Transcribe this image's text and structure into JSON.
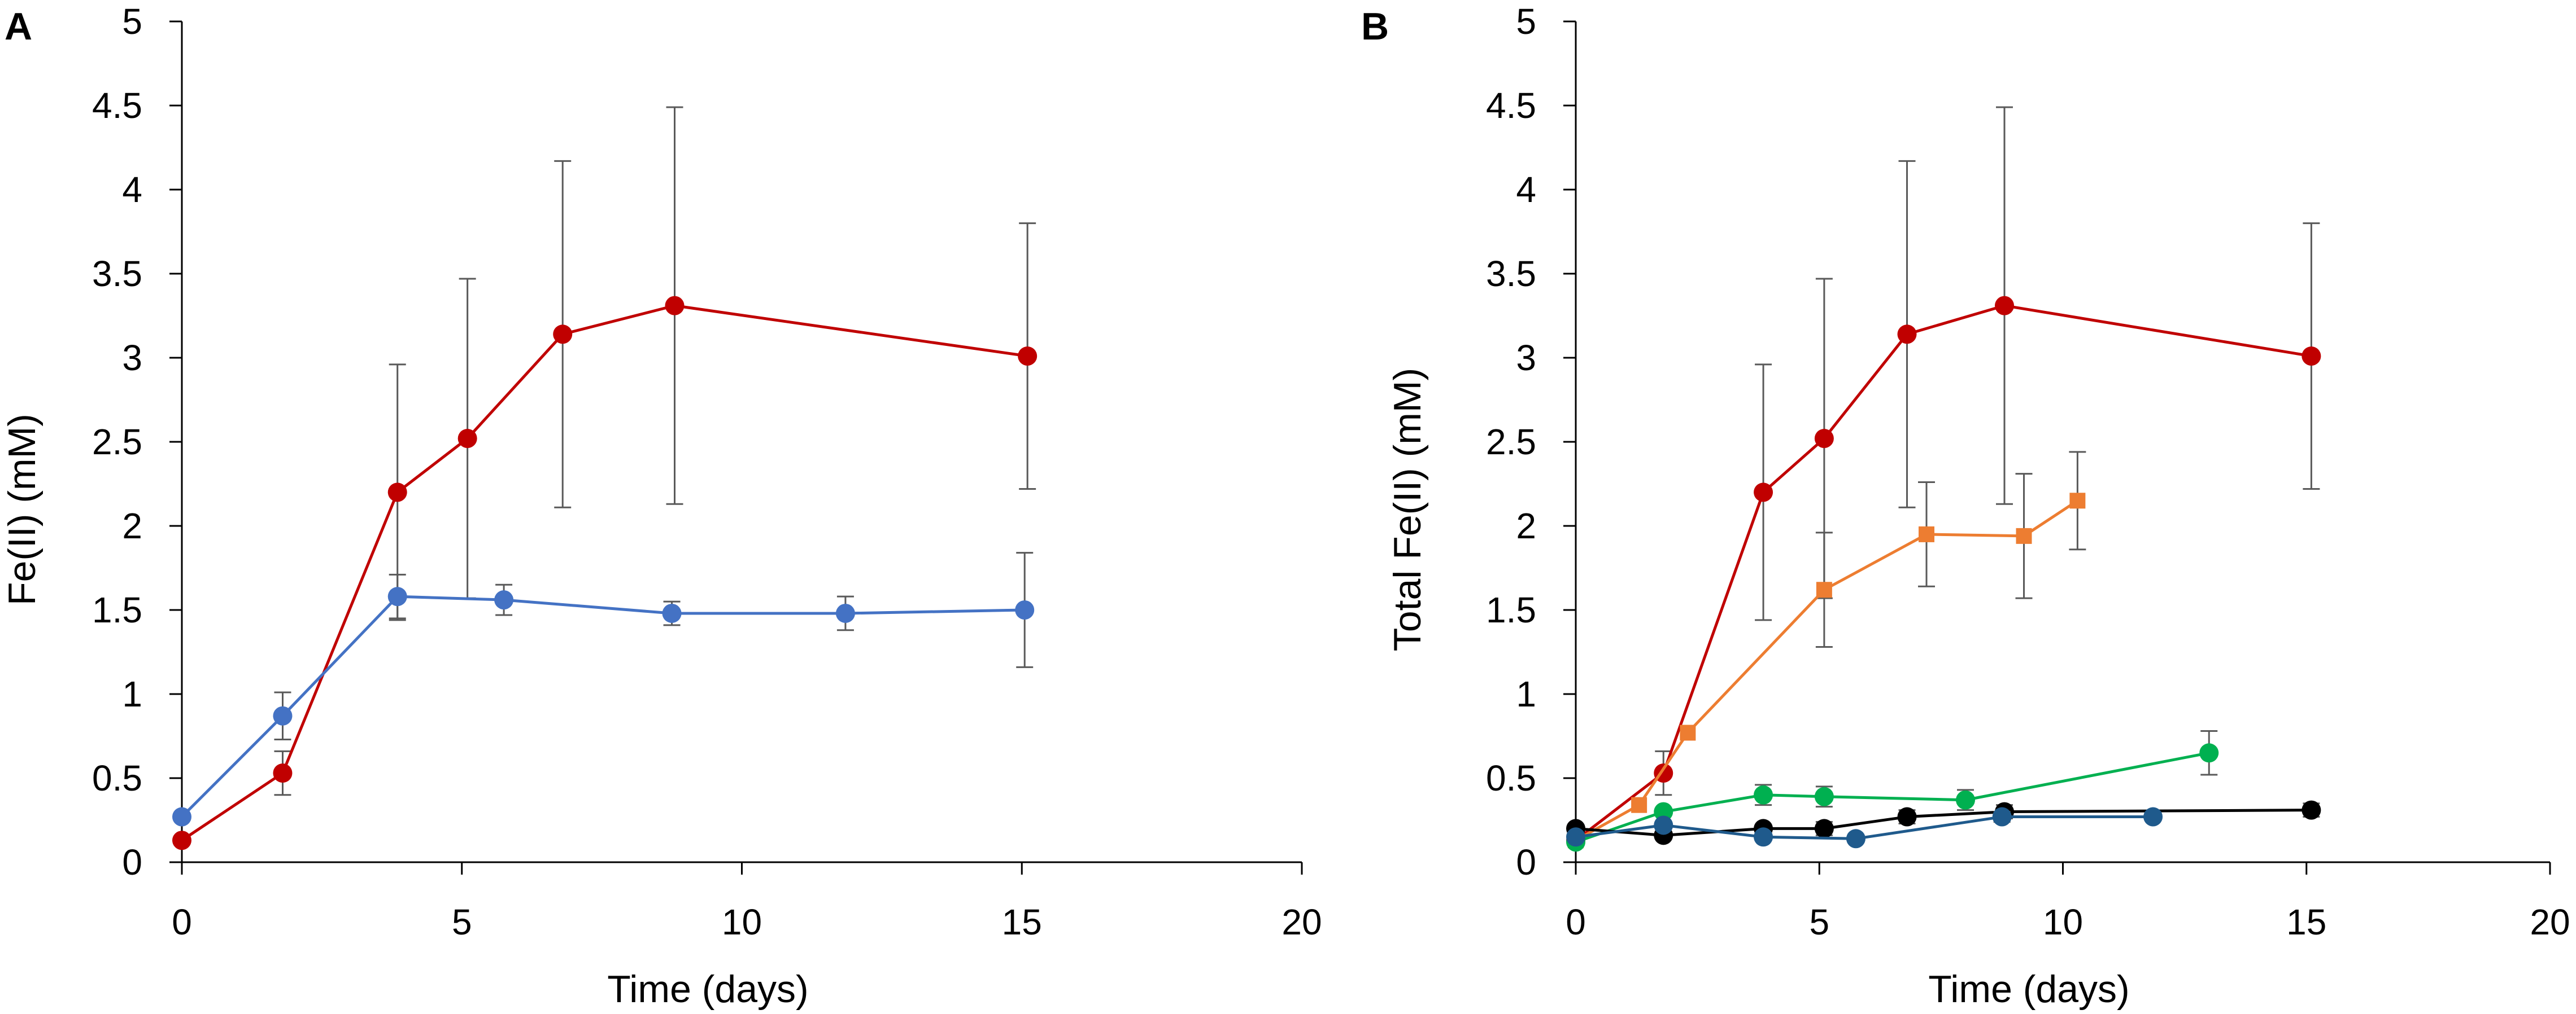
{
  "chart_data": [
    {
      "panel": "A",
      "type": "line",
      "title": "",
      "xlabel": "Time (days)",
      "ylabel": "Fe(II) (mM)",
      "xlim": [
        0,
        20
      ],
      "ylim": [
        0,
        5
      ],
      "xticks": [
        0,
        5,
        10,
        15,
        20
      ],
      "yticks": [
        "0",
        "0.5",
        "1",
        "1.5",
        "2",
        "2.5",
        "3",
        "3.5",
        "4",
        "4.5",
        "5"
      ],
      "series": [
        {
          "name": "red",
          "color": "#c00000",
          "marker": "circle",
          "x": [
            0,
            1.8,
            3.85,
            5.1,
            6.8,
            8.8,
            15.1
          ],
          "y": [
            0.13,
            0.53,
            2.2,
            2.52,
            3.14,
            3.31,
            3.01
          ],
          "err": [
            0,
            0.13,
            0.76,
            0.95,
            1.03,
            1.18,
            0.79
          ]
        },
        {
          "name": "blue",
          "color": "#4472c4",
          "marker": "circle",
          "x": [
            0,
            1.8,
            3.85,
            5.75,
            8.75,
            11.85,
            15.05
          ],
          "y": [
            0.27,
            0.87,
            1.58,
            1.56,
            1.48,
            1.48,
            1.5
          ],
          "err": [
            0,
            0.14,
            0.13,
            0.09,
            0.07,
            0.1,
            0.34
          ]
        }
      ]
    },
    {
      "panel": "B",
      "type": "line",
      "title": "",
      "xlabel": "Time (days)",
      "ylabel": "Total Fe(II) (mM)",
      "xlim": [
        0,
        20
      ],
      "ylim": [
        0,
        5
      ],
      "xticks": [
        0,
        5,
        10,
        15,
        20
      ],
      "yticks": [
        "0",
        "0.5",
        "1",
        "1.5",
        "2",
        "2.5",
        "3",
        "3.5",
        "4",
        "4.5",
        "5"
      ],
      "series": [
        {
          "name": "red",
          "color": "#c00000",
          "marker": "circle",
          "x": [
            0,
            1.8,
            3.85,
            5.1,
            6.8,
            8.8,
            15.1
          ],
          "y": [
            0.13,
            0.53,
            2.2,
            2.52,
            3.14,
            3.31,
            3.01
          ],
          "err": [
            0,
            0.13,
            0.76,
            0.95,
            1.03,
            1.18,
            0.79
          ]
        },
        {
          "name": "orange",
          "color": "#ed7d31",
          "marker": "square",
          "x": [
            0,
            1.3,
            2.3,
            5.1,
            7.2,
            9.2,
            10.3
          ],
          "y": [
            0.13,
            0.34,
            0.77,
            1.62,
            1.95,
            1.94,
            2.15
          ],
          "err": [
            0,
            0,
            0,
            0.34,
            0.31,
            0.37,
            0.29
          ]
        },
        {
          "name": "green",
          "color": "#00b050",
          "marker": "circle",
          "x": [
            0,
            1.8,
            3.85,
            5.1,
            8.0,
            13.0
          ],
          "y": [
            0.12,
            0.3,
            0.4,
            0.39,
            0.37,
            0.65
          ],
          "err": [
            0,
            0,
            0.06,
            0.06,
            0.06,
            0.13
          ]
        },
        {
          "name": "black",
          "color": "#000000",
          "marker": "circle",
          "x": [
            0,
            1.8,
            3.85,
            5.1,
            6.8,
            8.8,
            15.1
          ],
          "y": [
            0.2,
            0.16,
            0.2,
            0.2,
            0.27,
            0.3,
            0.31
          ],
          "err": [
            0,
            0,
            0,
            0.04,
            0.04,
            0.04,
            0.04
          ]
        },
        {
          "name": "dark-blue",
          "color": "#1f5a8c",
          "marker": "circle",
          "x": [
            0,
            1.8,
            3.85,
            5.75,
            8.75,
            11.85
          ],
          "y": [
            0.15,
            0.22,
            0.15,
            0.14,
            0.27,
            0.27
          ],
          "err": [
            0,
            0,
            0,
            0,
            0.03,
            0
          ]
        }
      ]
    }
  ]
}
